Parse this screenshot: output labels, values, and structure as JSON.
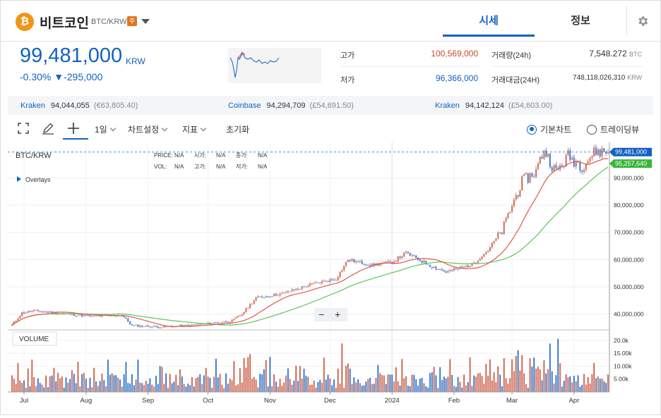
{
  "coin": {
    "logo_glyph": "₿",
    "name": "비트코인",
    "pair": "BTC/KRW",
    "badge": "주"
  },
  "tabs": {
    "quote": "시세",
    "info": "정보"
  },
  "price": {
    "value": "99,481,000",
    "unit": "KRW",
    "change_pct": "-0.30%",
    "change_amt": "▼-295,000"
  },
  "stats": {
    "high_label": "고가",
    "high": "100,569,000",
    "low_label": "저가",
    "low": "96,366,000",
    "volume_label": "거래량(24h)",
    "volume": "7,548.272",
    "volume_unit": "BTC",
    "value_label": "거래대금(24H)",
    "value": "748,118,026,310",
    "value_unit": "KRW"
  },
  "exchanges": [
    {
      "name": "Kraken",
      "price": "94,044,055",
      "fx": "(€63,805.40)"
    },
    {
      "name": "Coinbase",
      "price": "94,294,709",
      "fx": "(£54,691.50)"
    },
    {
      "name": "Kraken",
      "price": "94,142,124",
      "fx": "(£54,603.00)"
    }
  ],
  "toolbar": {
    "interval": "1일",
    "chart_settings": "차트설정",
    "indicators": "지표",
    "reset": "초기화",
    "mode_basic": "기본차트",
    "mode_tv": "트레이딩뷰"
  },
  "legend": {
    "symbol": "BTC/KRW",
    "overlays": "Overlays",
    "price_lbl": "PRICE:",
    "price": "N/A",
    "open_lbl": "시가:",
    "open": "N/A",
    "close_lbl": "종가:",
    "close": "N/A",
    "vol_lbl": "VOL:",
    "vol": "N/A",
    "high_lbl": "고가:",
    "high": "N/A",
    "low_lbl": "저가:",
    "low": "N/A"
  },
  "zoom": {
    "minus": "−",
    "plus": "+"
  },
  "volume_label": "VOLUME",
  "colors": {
    "up": "#c84a31",
    "down": "#1261c4",
    "ma_short": "#e0584a",
    "ma_long": "#5cc55c",
    "accent": "#1261c4"
  },
  "chart_data": {
    "type": "candlestick",
    "price_axis": {
      "min": 35000000,
      "max": 102000000,
      "ticks": [
        40000000,
        50000000,
        60000000,
        70000000,
        80000000,
        90000000
      ],
      "tick_labels": [
        "40,000,000",
        "50,000,000",
        "60,000,000",
        "70,000,000",
        "80,000,000",
        "90,000,000"
      ]
    },
    "volume_axis": {
      "max": 23000,
      "ticks": [
        5000,
        10000,
        15000,
        20000
      ],
      "tick_labels": [
        "5.00k",
        "10.00k",
        "15.00k",
        "20.0k"
      ]
    },
    "x_labels": [
      {
        "label": "Jul",
        "day": 6
      },
      {
        "label": "Aug",
        "day": 37
      },
      {
        "label": "Sep",
        "day": 68
      },
      {
        "label": "Oct",
        "day": 98
      },
      {
        "label": "Nov",
        "day": 129
      },
      {
        "label": "Dec",
        "day": 159
      },
      {
        "label": "2024",
        "day": 190
      },
      {
        "label": "Feb",
        "day": 221
      },
      {
        "label": "Mar",
        "day": 250
      },
      {
        "label": "Apr",
        "day": 281
      }
    ],
    "last_price": 99481000,
    "last_price_label": "99,481,000",
    "ma_label_value": 95257640,
    "ma_label": "95,257,640",
    "close_keypoints": [
      [
        0,
        36000000
      ],
      [
        5,
        40500000
      ],
      [
        12,
        41200000
      ],
      [
        25,
        40200000
      ],
      [
        40,
        39200000
      ],
      [
        55,
        39600000
      ],
      [
        60,
        35800000
      ],
      [
        75,
        35300000
      ],
      [
        90,
        35900000
      ],
      [
        110,
        37500000
      ],
      [
        115,
        40000000
      ],
      [
        122,
        46000000
      ],
      [
        135,
        47500000
      ],
      [
        150,
        51000000
      ],
      [
        162,
        53000000
      ],
      [
        168,
        60000000
      ],
      [
        180,
        58000000
      ],
      [
        190,
        59000000
      ],
      [
        197,
        62500000
      ],
      [
        210,
        57500000
      ],
      [
        217,
        55500000
      ],
      [
        230,
        58200000
      ],
      [
        238,
        63500000
      ],
      [
        245,
        70500000
      ],
      [
        250,
        80000000
      ],
      [
        255,
        88500000
      ],
      [
        262,
        92500000
      ],
      [
        266,
        100500000
      ],
      [
        272,
        92000000
      ],
      [
        278,
        98000000
      ],
      [
        285,
        94500000
      ],
      [
        292,
        99800000
      ],
      [
        298,
        99481000
      ]
    ]
  }
}
